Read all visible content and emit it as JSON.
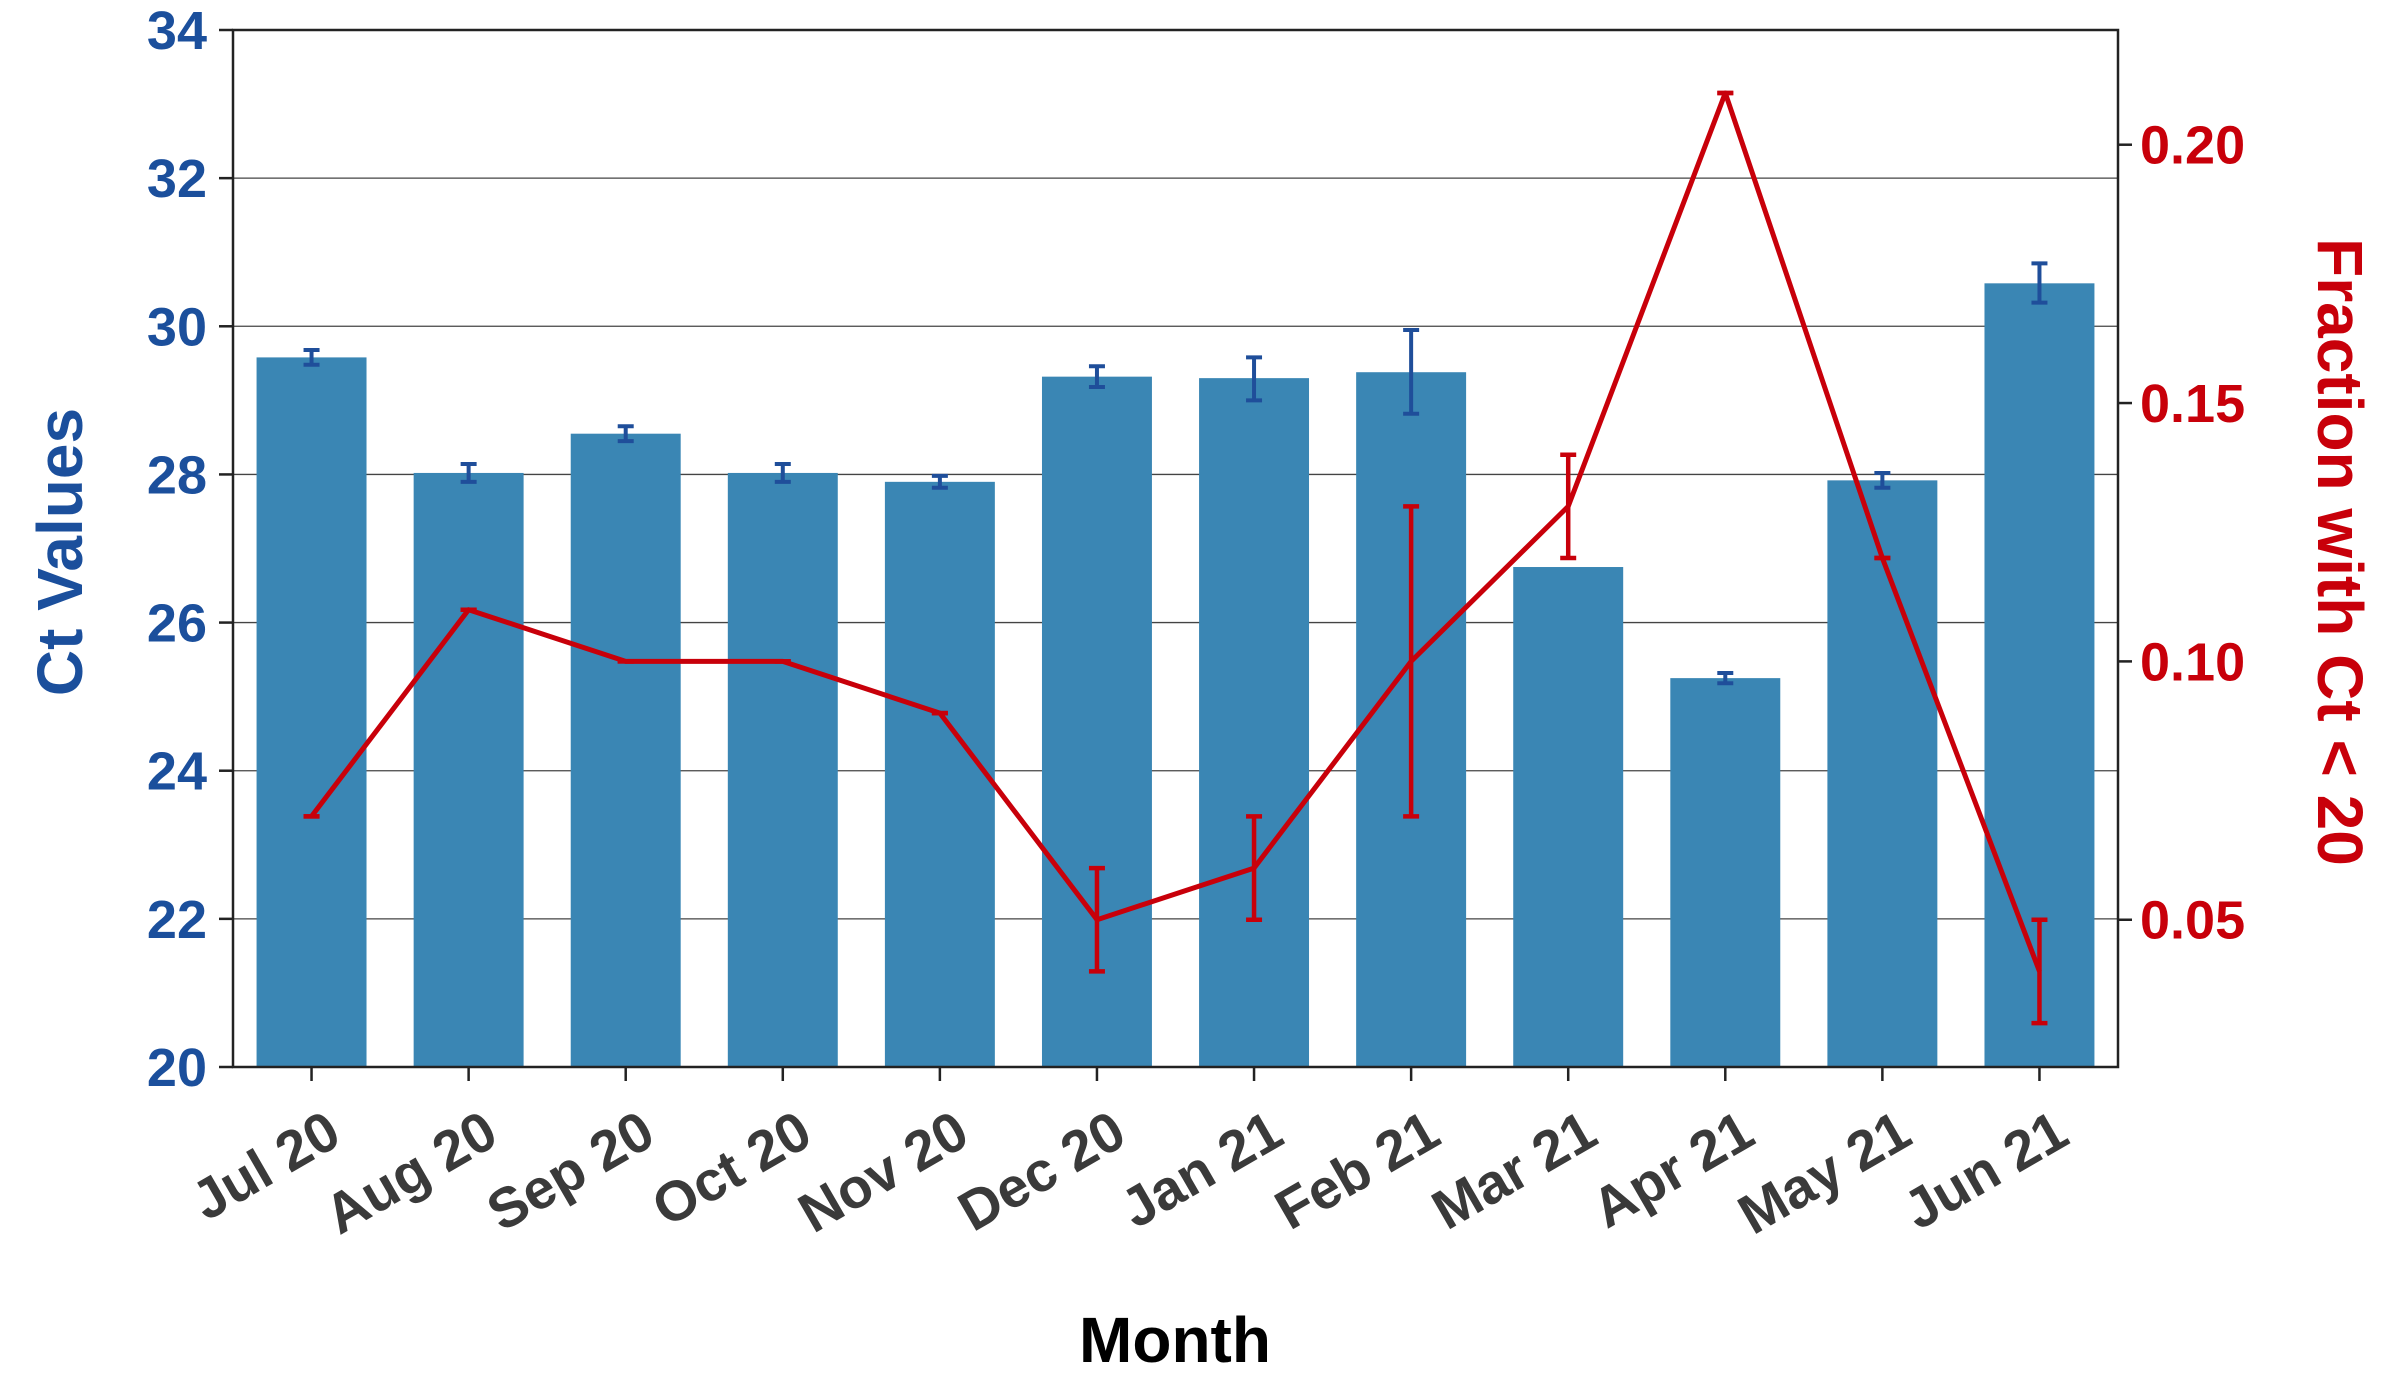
{
  "chart_data": {
    "type": "bar+line",
    "categories": [
      "Jul 20",
      "Aug 20",
      "Sep 20",
      "Oct 20",
      "Nov 20",
      "Dec 20",
      "Jan 21",
      "Feb 21",
      "Mar 21",
      "Apr 21",
      "May 21",
      "Jun 21"
    ],
    "xlabel": "Month",
    "series": [
      {
        "name": "Ct Values",
        "type": "bar",
        "axis": "left",
        "color": "#3a86b4",
        "errorbar_color": "#1f4e9a",
        "values": [
          29.58,
          28.02,
          28.55,
          28.02,
          27.9,
          29.32,
          29.3,
          29.38,
          26.75,
          25.25,
          27.92,
          30.58
        ],
        "error_low": [
          29.48,
          27.9,
          28.45,
          27.9,
          27.82,
          29.18,
          29.0,
          28.82,
          26.75,
          25.18,
          27.82,
          30.32
        ],
        "error_high": [
          29.68,
          28.14,
          28.65,
          28.14,
          27.98,
          29.46,
          29.58,
          29.95,
          26.75,
          25.32,
          28.02,
          30.85
        ]
      },
      {
        "name": "Fraction with Ct < 20",
        "type": "line",
        "axis": "right",
        "color": "#c8000a",
        "values": [
          0.07,
          0.11,
          0.1,
          0.1,
          0.09,
          0.05,
          0.06,
          0.1,
          0.13,
          0.21,
          0.12,
          0.04
        ],
        "error_low": [
          0.07,
          0.11,
          0.1,
          0.1,
          0.09,
          0.04,
          0.05,
          0.07,
          0.12,
          0.21,
          0.12,
          0.03
        ],
        "error_high": [
          0.07,
          0.11,
          0.1,
          0.1,
          0.09,
          0.06,
          0.07,
          0.13,
          0.14,
          0.21,
          0.12,
          0.05
        ]
      }
    ],
    "y_left": {
      "label": "Ct Values",
      "color": "#1b4f9c",
      "ylim": [
        20,
        34
      ],
      "ticks": [
        "20",
        "22",
        "24",
        "26",
        "28",
        "30",
        "32",
        "34"
      ]
    },
    "y_right": {
      "label": "Fraction with Ct < 20",
      "color": "#c8000a",
      "ylim": [
        0.0215,
        0.2222
      ],
      "ticks": [
        "0.05",
        "0.10",
        "0.15",
        "0.20"
      ]
    },
    "grid": true
  }
}
